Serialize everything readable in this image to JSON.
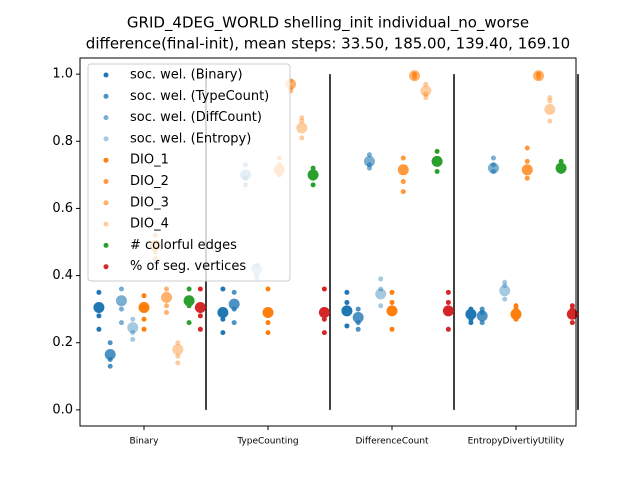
{
  "chart_data": {
    "type": "strip",
    "title": "GRID_4DEG_WORLD shelling_init individual_no_worse",
    "subtitle": "difference(final-init), mean steps: 33.50, 185.00, 139.40, 169.10",
    "categories": [
      "Binary",
      "TypeCounting",
      "DifferenceCount",
      "EntropyDivertiyUtility"
    ],
    "ylim": [
      -0.048,
      1.048
    ],
    "yticks": [
      {
        "value": 0,
        "label": "0.0"
      },
      0.2,
      0.4,
      0.6,
      0.8,
      {
        "value": 1,
        "label": "1.0"
      }
    ],
    "legend": "upper left",
    "series": [
      {
        "name": "soc. wel. (Binary)",
        "color": "#1f77b4",
        "opacity": 1,
        "values": [
          0.305,
          0.29,
          0.295,
          0.285
        ],
        "points": [
          [
            0.24,
            0.28,
            0.35
          ],
          [
            0.23,
            0.27,
            0.36
          ],
          [
            0.25,
            0.32,
            0.35
          ],
          [
            0.26,
            0.3,
            0.27
          ]
        ]
      },
      {
        "name": "soc. wel. (TypeCount)",
        "color": "#1f77b4",
        "opacity": 0.8,
        "values": [
          0.165,
          0.315,
          0.275,
          0.28
        ],
        "points": [
          [
            0.13,
            0.15,
            0.2
          ],
          [
            0.26,
            0.3,
            0.35
          ],
          [
            0.24,
            0.26,
            0.3
          ],
          [
            0.26,
            0.29,
            0.3
          ]
        ]
      },
      {
        "name": "soc. wel. (DiffCount)",
        "color": "#1f77b4",
        "opacity": 0.6,
        "values": [
          0.325,
          0.7,
          0.74,
          0.72
        ],
        "points": [
          [
            0.26,
            0.3,
            0.36
          ],
          [
            0.67,
            0.69,
            0.73
          ],
          [
            0.72,
            0.73,
            0.76
          ],
          [
            0.71,
            0.73,
            0.75
          ]
        ]
      },
      {
        "name": "soc. wel. (Entropy)",
        "color": "#1f77b4",
        "opacity": 0.4,
        "values": [
          0.245,
          0.42,
          0.345,
          0.355
        ],
        "points": [
          [
            0.21,
            0.23,
            0.27
          ],
          [
            0.39,
            0.4,
            0.43
          ],
          [
            0.31,
            0.36,
            0.39
          ],
          [
            0.33,
            0.37,
            0.38
          ]
        ]
      },
      {
        "name": "DIO_1",
        "color": "#ff7f0e",
        "opacity": 1,
        "values": [
          0.305,
          0.29,
          0.295,
          0.285
        ],
        "points": [
          [
            0.24,
            0.27,
            0.34
          ],
          [
            0.23,
            0.26,
            0.36
          ],
          [
            0.24,
            0.32,
            0.35
          ],
          [
            0.27,
            0.3,
            0.31
          ]
        ]
      },
      {
        "name": "DIO_2",
        "color": "#ff7f0e",
        "opacity": 0.8,
        "values": [
          0.49,
          0.715,
          0.715,
          0.715
        ],
        "points": [
          [
            0.45,
            0.47,
            0.52
          ],
          [
            0.7,
            0.73,
            0.75
          ],
          [
            0.65,
            0.68,
            0.75
          ],
          [
            0.69,
            0.74,
            0.78
          ]
        ]
      },
      {
        "name": "DIO_3",
        "color": "#ff7f0e",
        "opacity": 0.6,
        "values": [
          0.335,
          0.97,
          0.995,
          0.995
        ],
        "points": [
          [
            0.29,
            0.31,
            0.36
          ],
          [
            0.95,
            0.96,
            0.98
          ],
          [
            0.99,
            1.0,
            1.0
          ],
          [
            0.99,
            1.0,
            1.0
          ]
        ]
      },
      {
        "name": "DIO_4",
        "color": "#ff7f0e",
        "opacity": 0.4,
        "values": [
          0.18,
          0.84,
          0.95,
          0.895
        ],
        "points": [
          [
            0.14,
            0.16,
            0.2
          ],
          [
            0.81,
            0.86,
            0.87
          ],
          [
            0.93,
            0.94,
            0.97
          ],
          [
            0.86,
            0.92,
            0.93
          ]
        ]
      },
      {
        "name": "# colorful edges",
        "color": "#2ca02c",
        "opacity": 1,
        "values": [
          0.325,
          0.7,
          0.74,
          0.72
        ],
        "points": [
          [
            0.26,
            0.31,
            0.36
          ],
          [
            0.67,
            0.69,
            0.72
          ],
          [
            0.71,
            0.74,
            0.77
          ],
          [
            0.71,
            0.73,
            0.74
          ]
        ]
      },
      {
        "name": "% of seg. vertices",
        "color": "#d62728",
        "opacity": 1,
        "values": [
          0.305,
          0.29,
          0.295,
          0.285
        ],
        "points": [
          [
            0.24,
            0.28,
            0.36
          ],
          [
            0.23,
            0.27,
            0.36
          ],
          [
            0.24,
            0.32,
            0.35
          ],
          [
            0.26,
            0.3,
            0.31
          ]
        ]
      }
    ]
  }
}
